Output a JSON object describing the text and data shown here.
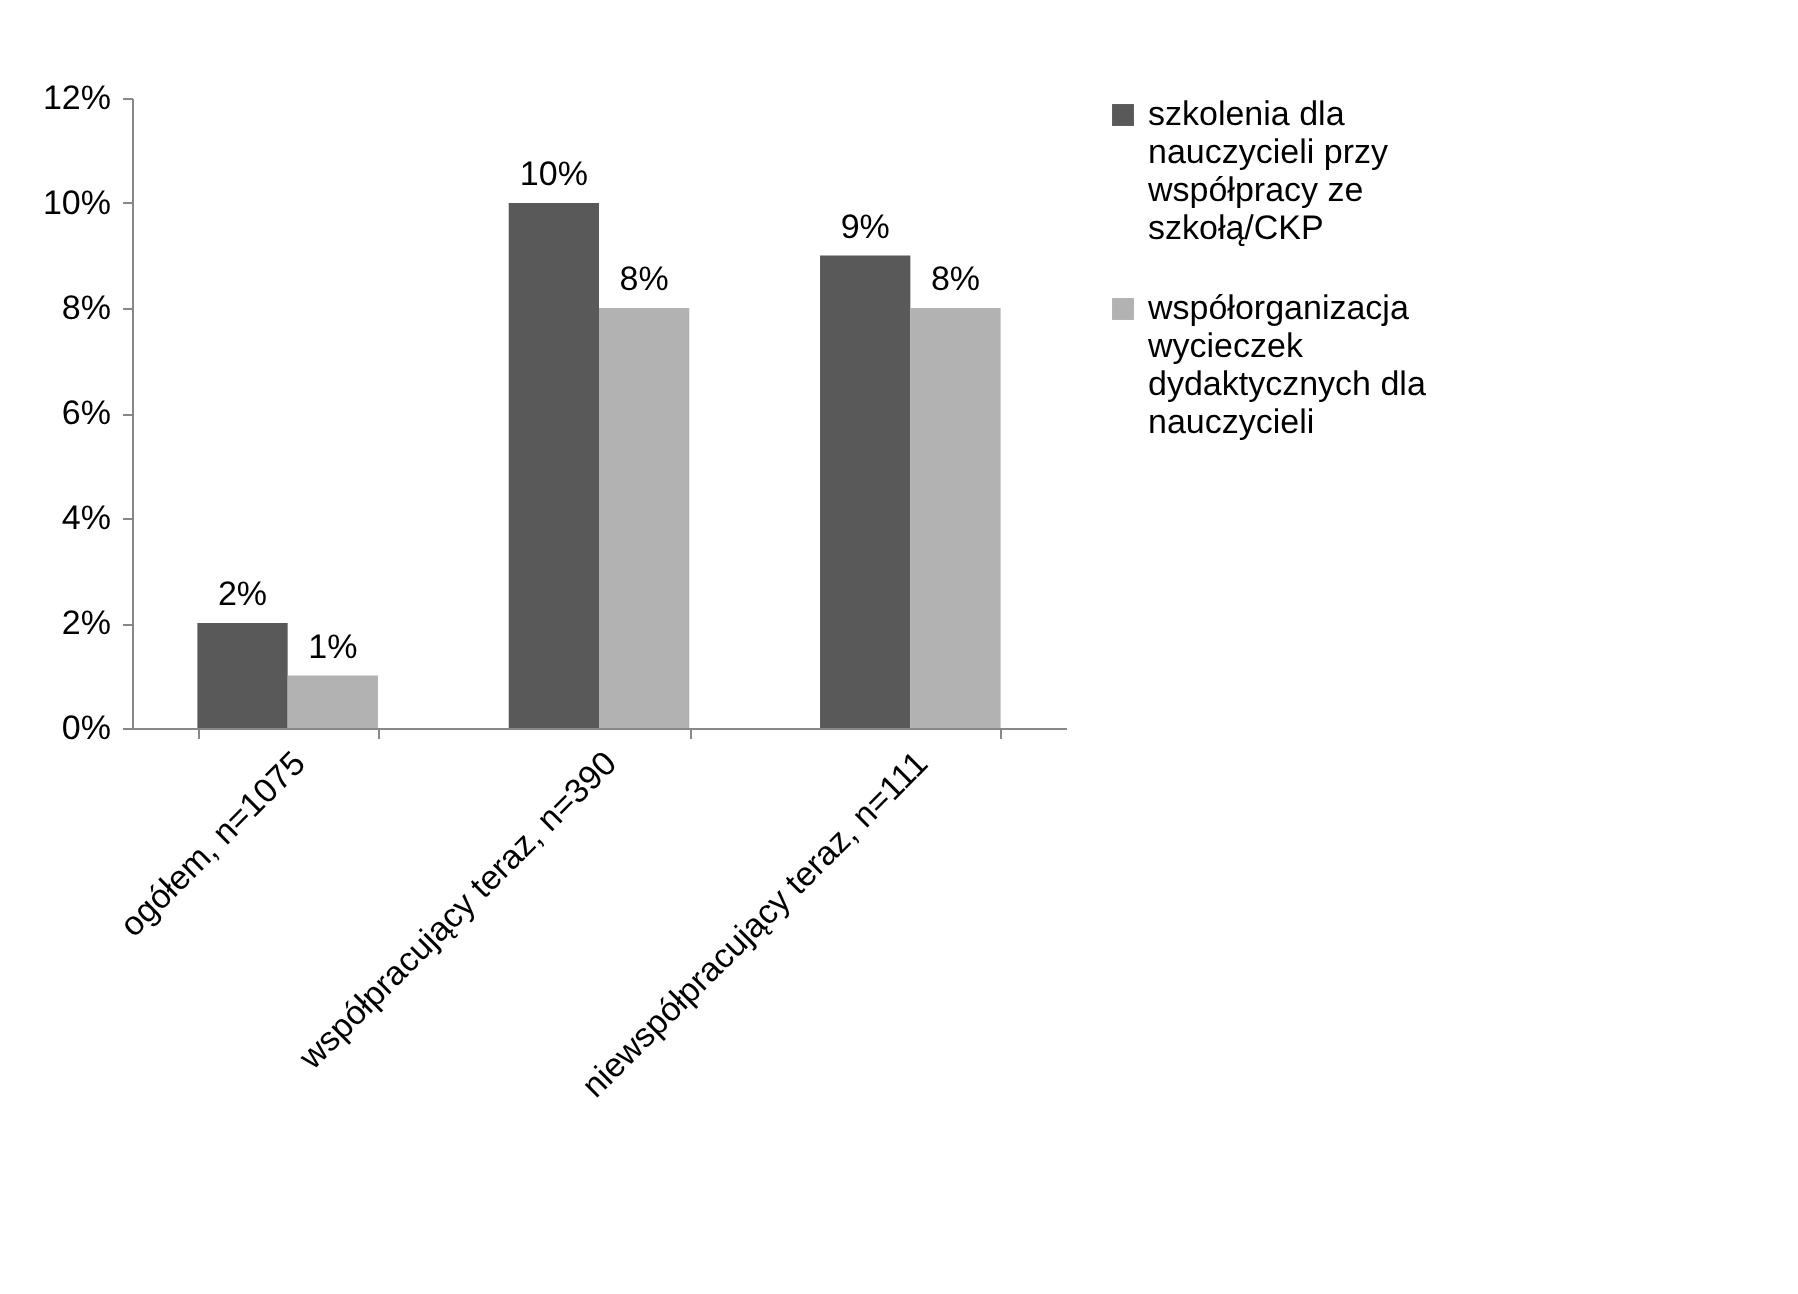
{
  "chart_data": {
    "type": "bar",
    "categories": [
      "ogółem, n=1075",
      "współpracujący teraz, n=390",
      "niewspółpracujący teraz, n=111"
    ],
    "series": [
      {
        "name": "szkolenia dla nauczycieli przy współpracy ze szkołą/CKP",
        "color": "#595959",
        "values": [
          2,
          10,
          9
        ],
        "value_labels": [
          "2%",
          "10%",
          "9%"
        ]
      },
      {
        "name": "współorganizacja wycieczek dydaktycznych dla nauczycieli",
        "color": "#b2b2b2",
        "values": [
          1,
          8,
          8
        ],
        "value_labels": [
          "1%",
          "8%",
          "8%"
        ]
      }
    ],
    "ylim": [
      0,
      12
    ],
    "yticks": [
      {
        "value": 0,
        "label": "0%"
      },
      {
        "value": 2,
        "label": "2%"
      },
      {
        "value": 4,
        "label": "4%"
      },
      {
        "value": 6,
        "label": "6%"
      },
      {
        "value": 8,
        "label": "8%"
      },
      {
        "value": 10,
        "label": "10%"
      },
      {
        "value": 12,
        "label": "12%"
      }
    ],
    "grid": false,
    "legend": "right"
  }
}
